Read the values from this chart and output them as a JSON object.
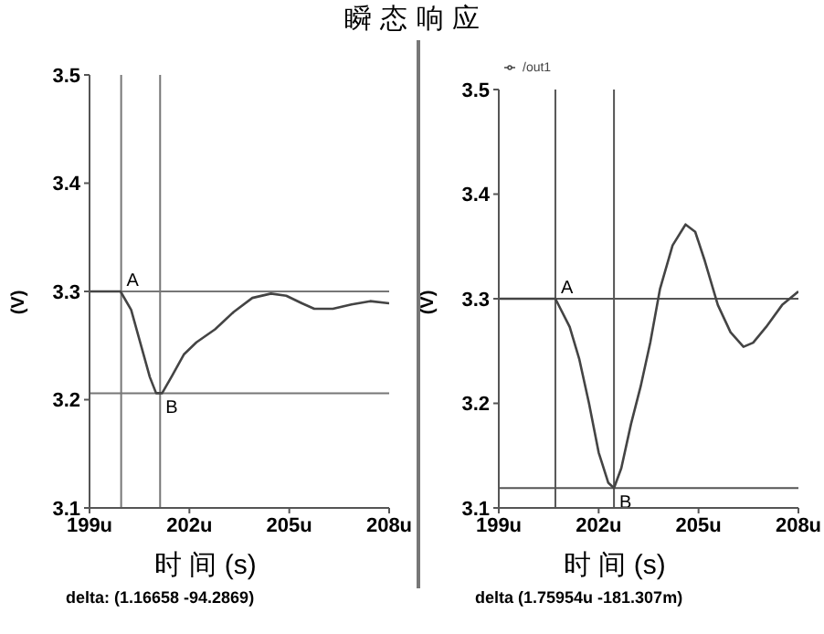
{
  "chart_data": [
    {
      "type": "line",
      "title": "瞬 态 响 应",
      "xlabel": "时 间 (s)",
      "ylabel": "(V)",
      "xlim": [
        199,
        208
      ],
      "xticks": [
        {
          "value": 199,
          "label": "199u"
        },
        {
          "value": 202,
          "label": "202u"
        },
        {
          "value": 205,
          "label": "205u"
        },
        {
          "value": 208,
          "label": "208u"
        }
      ],
      "ylim": [
        3.1,
        3.5
      ],
      "yticks": [
        3.1,
        3.2,
        3.3,
        3.4,
        3.5
      ],
      "series": [
        {
          "color": "#444444",
          "x": [
            199,
            199.93,
            200.25,
            200.53,
            200.81,
            201.0,
            201.18,
            201.46,
            201.84,
            202.21,
            202.77,
            203.33,
            203.89,
            204.45,
            204.91,
            205.38,
            205.75,
            206.31,
            206.87,
            207.43,
            208.0
          ],
          "values": [
            3.3,
            3.3,
            3.283,
            3.252,
            3.221,
            3.206,
            3.206,
            3.221,
            3.242,
            3.253,
            3.265,
            3.281,
            3.294,
            3.298,
            3.296,
            3.289,
            3.284,
            3.284,
            3.288,
            3.291,
            3.289
          ]
        }
      ],
      "ref_lines": [
        {
          "axis": "x",
          "value": 199.95,
          "label": "A",
          "color": "#777777"
        },
        {
          "axis": "x",
          "value": 201.12,
          "label": "B",
          "color": "#777777"
        },
        {
          "axis": "y",
          "value": 3.3,
          "color": "#777777"
        },
        {
          "axis": "y",
          "value": 3.206,
          "color": "#777777"
        }
      ],
      "annotations": [
        "delta: (1.16658 -94.2869)"
      ],
      "grid": false,
      "legend": false,
      "marker": "none",
      "line_style": "solid"
    },
    {
      "type": "line",
      "xlabel": "时 间 (s)",
      "ylabel": "(V)",
      "xlim": [
        199,
        208
      ],
      "xticks": [
        {
          "value": 199,
          "label": "199u"
        },
        {
          "value": 202,
          "label": "202u"
        },
        {
          "value": 205,
          "label": "205u"
        },
        {
          "value": 208,
          "label": "208u"
        }
      ],
      "ylim": [
        3.1,
        3.5
      ],
      "yticks": [
        3.1,
        3.2,
        3.3,
        3.4,
        3.5
      ],
      "series": [
        {
          "name": "/out1",
          "color": "#444444",
          "x": [
            199,
            200.7,
            201.13,
            201.42,
            201.71,
            202.0,
            202.29,
            202.46,
            202.68,
            202.97,
            203.26,
            203.55,
            203.84,
            204.22,
            204.61,
            204.9,
            205.19,
            205.58,
            205.96,
            206.35,
            206.64,
            207.03,
            207.51,
            208.0
          ],
          "values": [
            3.3,
            3.3,
            3.273,
            3.242,
            3.2,
            3.153,
            3.124,
            3.119,
            3.138,
            3.18,
            3.216,
            3.258,
            3.309,
            3.351,
            3.371,
            3.364,
            3.336,
            3.294,
            3.268,
            3.254,
            3.258,
            3.273,
            3.294,
            3.307
          ]
        }
      ],
      "ref_lines": [
        {
          "axis": "x",
          "value": 200.7,
          "label": "A",
          "color": "#555555"
        },
        {
          "axis": "x",
          "value": 202.46,
          "label": "B",
          "color": "#555555"
        },
        {
          "axis": "y",
          "value": 3.3,
          "color": "#555555"
        },
        {
          "axis": "y",
          "value": 3.119,
          "color": "#555555"
        }
      ],
      "annotations": [
        "delta (1.75954u -181.307m)"
      ],
      "grid": false,
      "legend": "top left",
      "marker": "none",
      "line_style": "solid"
    }
  ]
}
